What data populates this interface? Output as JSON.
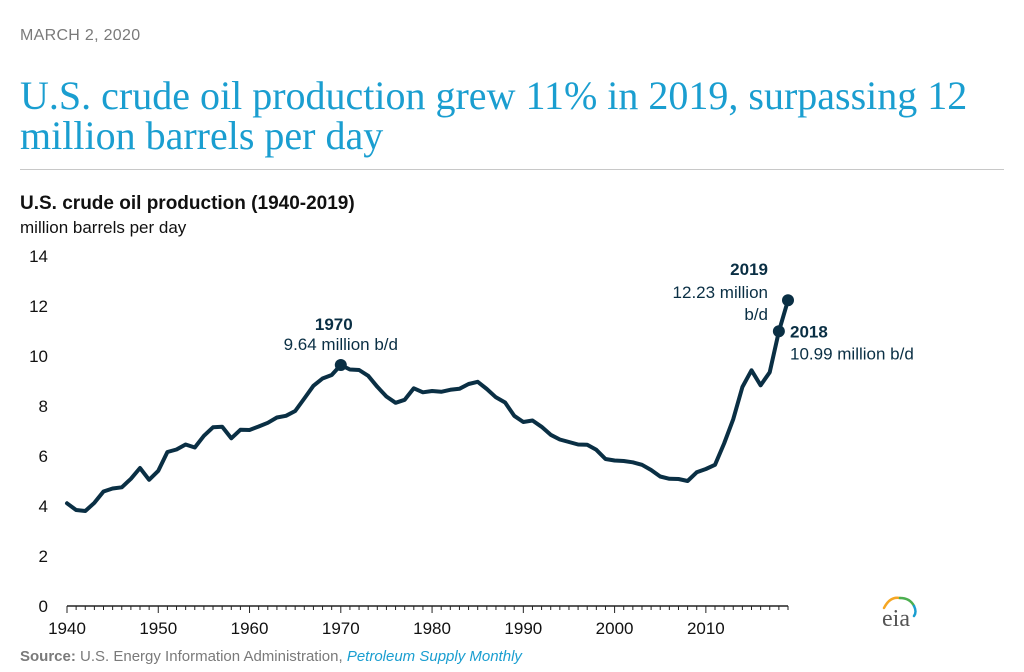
{
  "header": {
    "date": "MARCH 2, 2020",
    "headline": "U.S. crude oil production grew 11% in 2019, surpassing 12 million barrels per day"
  },
  "chart_data": {
    "type": "line",
    "title": "U.S. crude oil production (1940-2019)",
    "ylabel": "million barrels per day",
    "xlim": [
      1940,
      2019
    ],
    "ylim": [
      0,
      14
    ],
    "yticks": [
      0,
      2,
      4,
      6,
      8,
      10,
      12,
      14
    ],
    "xticks": [
      1940,
      1950,
      1960,
      1970,
      1980,
      1990,
      2000,
      2010
    ],
    "grid": false,
    "color": "#0a2f44",
    "series": [
      {
        "x": [
          1940,
          1941,
          1942,
          1943,
          1944,
          1945,
          1946,
          1947,
          1948,
          1949,
          1950,
          1951,
          1952,
          1953,
          1954,
          1955,
          1956,
          1957,
          1958,
          1959,
          1960,
          1961,
          1962,
          1963,
          1964,
          1965,
          1966,
          1967,
          1968,
          1969,
          1970,
          1971,
          1972,
          1973,
          1974,
          1975,
          1976,
          1977,
          1978,
          1979,
          1980,
          1981,
          1982,
          1983,
          1984,
          1985,
          1986,
          1987,
          1988,
          1989,
          1990,
          1991,
          1992,
          1993,
          1994,
          1995,
          1996,
          1997,
          1998,
          1999,
          2000,
          2001,
          2002,
          2003,
          2004,
          2005,
          2006,
          2007,
          2008,
          2009,
          2010,
          2011,
          2012,
          2013,
          2014,
          2015,
          2016,
          2017,
          2018,
          2019
        ],
        "y": [
          4.11,
          3.84,
          3.8,
          4.13,
          4.58,
          4.7,
          4.75,
          5.09,
          5.52,
          5.05,
          5.41,
          6.16,
          6.26,
          6.46,
          6.34,
          6.81,
          7.15,
          7.17,
          6.71,
          7.05,
          7.04,
          7.18,
          7.33,
          7.54,
          7.61,
          7.8,
          8.3,
          8.81,
          9.1,
          9.24,
          9.64,
          9.46,
          9.44,
          9.21,
          8.77,
          8.38,
          8.13,
          8.25,
          8.71,
          8.55,
          8.6,
          8.57,
          8.65,
          8.69,
          8.88,
          8.97,
          8.68,
          8.35,
          8.14,
          7.61,
          7.36,
          7.42,
          7.17,
          6.85,
          6.66,
          6.56,
          6.46,
          6.45,
          6.25,
          5.88,
          5.82,
          5.8,
          5.75,
          5.65,
          5.44,
          5.18,
          5.09,
          5.08,
          5.0,
          5.35,
          5.48,
          5.65,
          6.5,
          7.47,
          8.76,
          9.43,
          8.83,
          9.35,
          10.99,
          12.23
        ]
      }
    ],
    "annotations": [
      {
        "year": "1970",
        "value": "9.64 million b/d",
        "x": 1970,
        "y": 9.64
      },
      {
        "year": "2018",
        "value": "10.99 million b/d",
        "x": 2018,
        "y": 10.99
      },
      {
        "year": "2019",
        "value_line1": "12.23 million",
        "value_line2": "b/d",
        "x": 2019,
        "y": 12.23
      }
    ]
  },
  "footer": {
    "source_label": "Source:",
    "source_text": " U.S. Energy Information Administration, ",
    "source_link": "Petroleum Supply Monthly"
  },
  "logo": {
    "text": "eia",
    "icon": "eia-logo-icon",
    "colors": [
      "#f5a623",
      "#4caf50",
      "#1a9ed0"
    ]
  }
}
